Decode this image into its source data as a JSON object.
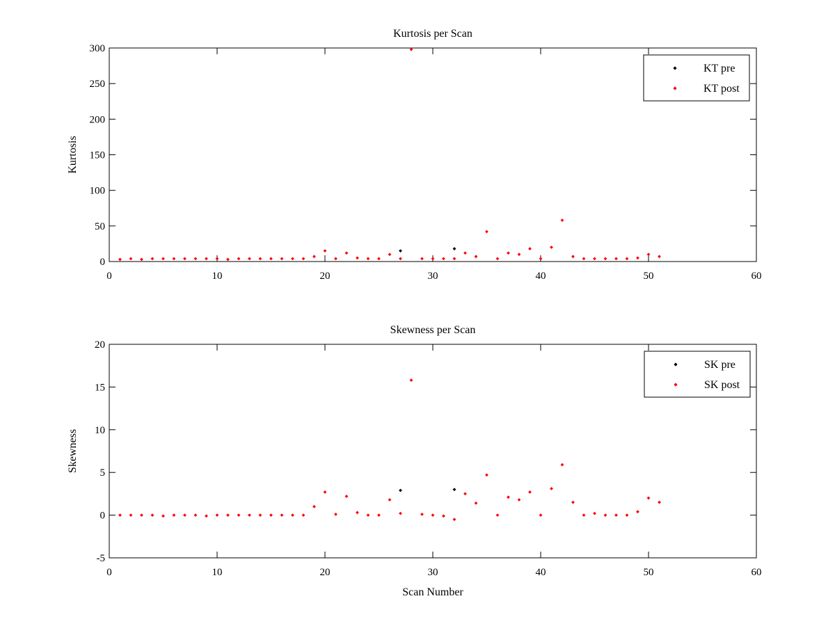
{
  "chart_data": [
    {
      "type": "scatter",
      "title": "Kurtosis per Scan",
      "xlabel": "",
      "ylabel": "Kurtosis",
      "xlim": [
        0,
        60
      ],
      "ylim": [
        0,
        300
      ],
      "xticks": [
        0,
        10,
        20,
        30,
        40,
        50,
        60
      ],
      "yticks": [
        0,
        50,
        100,
        150,
        200,
        250,
        300
      ],
      "grid": false,
      "legend_position": "top-right",
      "series": [
        {
          "name": "KT pre",
          "color": "#000000",
          "x": [
            27,
            32
          ],
          "y": [
            15,
            18
          ]
        },
        {
          "name": "KT post",
          "color": "#ff0000",
          "x": [
            1,
            2,
            3,
            4,
            5,
            6,
            7,
            8,
            9,
            10,
            11,
            12,
            13,
            14,
            15,
            16,
            17,
            18,
            19,
            20,
            21,
            22,
            23,
            24,
            25,
            26,
            27,
            28,
            29,
            30,
            31,
            32,
            33,
            34,
            35,
            36,
            37,
            38,
            39,
            40,
            41,
            42,
            43,
            44,
            45,
            46,
            47,
            48,
            49,
            50,
            51
          ],
          "y": [
            3,
            4,
            3,
            4,
            4,
            4,
            4,
            4,
            4,
            4,
            3,
            4,
            4,
            4,
            4,
            4,
            4,
            4,
            7,
            15,
            4,
            12,
            5,
            4,
            4,
            10,
            4,
            298,
            4,
            4,
            4,
            4,
            12,
            7,
            42,
            4,
            12,
            10,
            18,
            4,
            20,
            58,
            7,
            4,
            4,
            4,
            4,
            4,
            5,
            10,
            7
          ]
        }
      ]
    },
    {
      "type": "scatter",
      "title": "Skewness per Scan",
      "xlabel": "Scan Number",
      "ylabel": "Skewness",
      "xlim": [
        0,
        60
      ],
      "ylim": [
        -5,
        20
      ],
      "xticks": [
        0,
        10,
        20,
        30,
        40,
        50,
        60
      ],
      "yticks": [
        -5,
        0,
        5,
        10,
        15,
        20
      ],
      "grid": false,
      "legend_position": "top-right",
      "series": [
        {
          "name": "SK pre",
          "color": "#000000",
          "x": [
            27,
            32
          ],
          "y": [
            2.9,
            3.0
          ]
        },
        {
          "name": "SK post",
          "color": "#ff0000",
          "x": [
            1,
            2,
            3,
            4,
            5,
            6,
            7,
            8,
            9,
            10,
            11,
            12,
            13,
            14,
            15,
            16,
            17,
            18,
            19,
            20,
            21,
            22,
            23,
            24,
            25,
            26,
            27,
            28,
            29,
            30,
            31,
            32,
            33,
            34,
            35,
            36,
            37,
            38,
            39,
            40,
            41,
            42,
            43,
            44,
            45,
            46,
            47,
            48,
            49,
            50,
            51
          ],
          "y": [
            0.0,
            0.0,
            0.0,
            0.0,
            -0.1,
            0.0,
            0.0,
            0.0,
            -0.1,
            0.0,
            0.0,
            0.0,
            0.0,
            0.0,
            0.0,
            0.0,
            0.0,
            0.0,
            1.0,
            2.7,
            0.1,
            2.2,
            0.3,
            0.0,
            0.0,
            1.8,
            0.2,
            15.8,
            0.1,
            0.0,
            -0.1,
            -0.5,
            2.5,
            1.4,
            4.7,
            0.0,
            2.1,
            1.8,
            2.7,
            0.0,
            3.1,
            5.9,
            1.5,
            0.0,
            0.2,
            0.0,
            0.0,
            0.0,
            0.4,
            2.0,
            1.5
          ]
        }
      ]
    }
  ]
}
